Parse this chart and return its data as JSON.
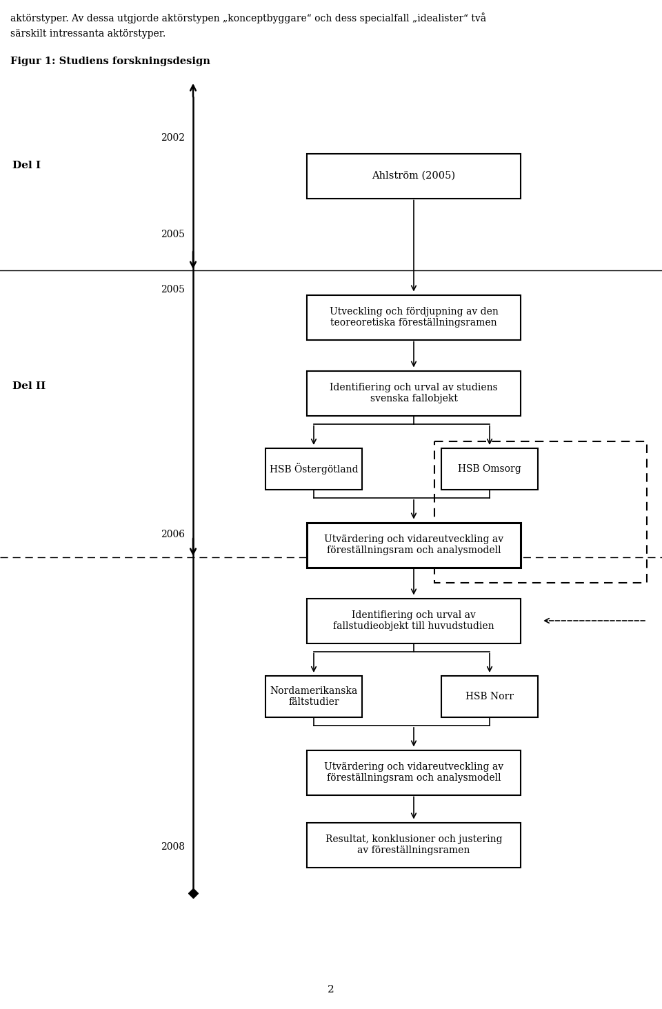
{
  "intro_text1": "aktörstyper. Av dessa utgjorde aktörstypen „konceptbyggare“ och dess specialfall „idealister“ två",
  "intro_text2": "särskilt intressanta aktörstyper.",
  "title_text": "Figur 1: Studiens forskningsdesign",
  "del1_label": "Del I",
  "del2_label": "Del II",
  "year_2002": "2002",
  "year_2005a": "2005",
  "year_2005b": "2005",
  "year_2006": "2006",
  "year_2008": "2008",
  "box_ahlstrom": "Ahlström (2005)",
  "box_utveckling": "Utveckling och fördjupning av den\nteoreoretiska föreställningsramen",
  "box_id1": "Identifiering och urval av studiens\nsvenska fallobjekt",
  "box_hsb_ost": "HSB Östergötland",
  "box_hsb_oms": "HSB Omsorg",
  "box_utv1": "Utvärdering och vidareutveckling av\nföreställningsram och analysmodell",
  "box_id2": "Identifiering och urval av\nfallstudieobjekt till huvudstudien",
  "box_nord": "Nordamerikanska\nfältstudier",
  "box_hsb_norr": "HSB Norr",
  "box_utv2": "Utvärdering och vidareutveckling av\nföreställningsram och analysmodell",
  "box_resultat": "Resultat, konklusioner och justering\nav föreställningsramen",
  "bg_color": "#ffffff",
  "text_color": "#000000",
  "line_color": "#000000",
  "page_number": "2"
}
